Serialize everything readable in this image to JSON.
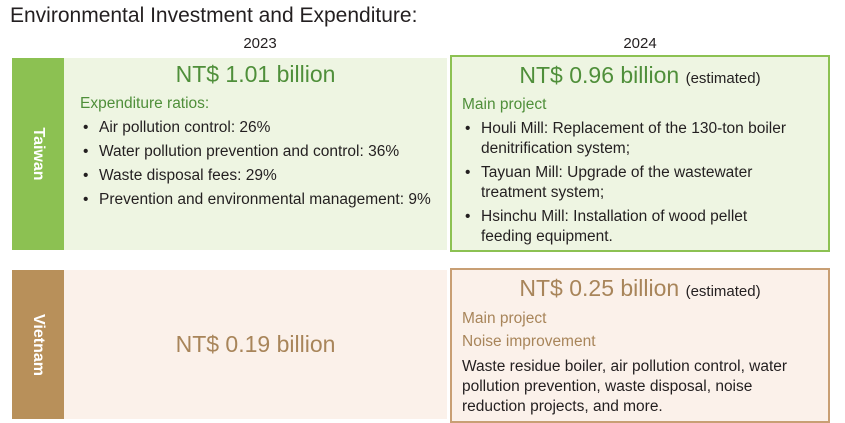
{
  "title": "Environmental Investment and Expenditure:",
  "years": {
    "col_2023": "2023",
    "col_2024": "2024"
  },
  "colors": {
    "taiwan_bar": "#8cc152",
    "taiwan_panel": "#eef5e2",
    "taiwan_border": "#8cc152",
    "taiwan_text": "#4f8f3a",
    "vietnam_bar": "#b8905a",
    "vietnam_panel": "#fbf1ea",
    "vietnam_border": "#c89f74",
    "vietnam_text": "#a8855a"
  },
  "taiwan": {
    "label": "Taiwan",
    "y2023": {
      "amount": "NT$ 1.01 billion",
      "ratios_label": "Expenditure ratios:",
      "ratios": [
        "Air pollution control: 26%",
        "Water pollution prevention and control: 36%",
        "Waste disposal fees: 29%",
        "Prevention and environmental management: 9%"
      ]
    },
    "y2024": {
      "amount": "NT$ 0.96 billion",
      "amount_note": "(estimated)",
      "project_label": "Main project",
      "projects": [
        "Houli Mill: Replacement of the 130-ton boiler denitrification system;",
        "Tayuan Mill: Upgrade of the wastewater treatment system;",
        "Hsinchu Mill: Installation of wood pellet feeding equipment."
      ]
    }
  },
  "vietnam": {
    "label": "Vietnam",
    "y2023": {
      "amount": "NT$ 0.19 billion"
    },
    "y2024": {
      "amount": "NT$ 0.25 billion",
      "amount_note": "(estimated)",
      "project_label": "Main project",
      "project_sub": "Noise improvement",
      "description": "Waste residue boiler, air pollution control, water pollution prevention, waste disposal, noise reduction projects, and more."
    }
  }
}
